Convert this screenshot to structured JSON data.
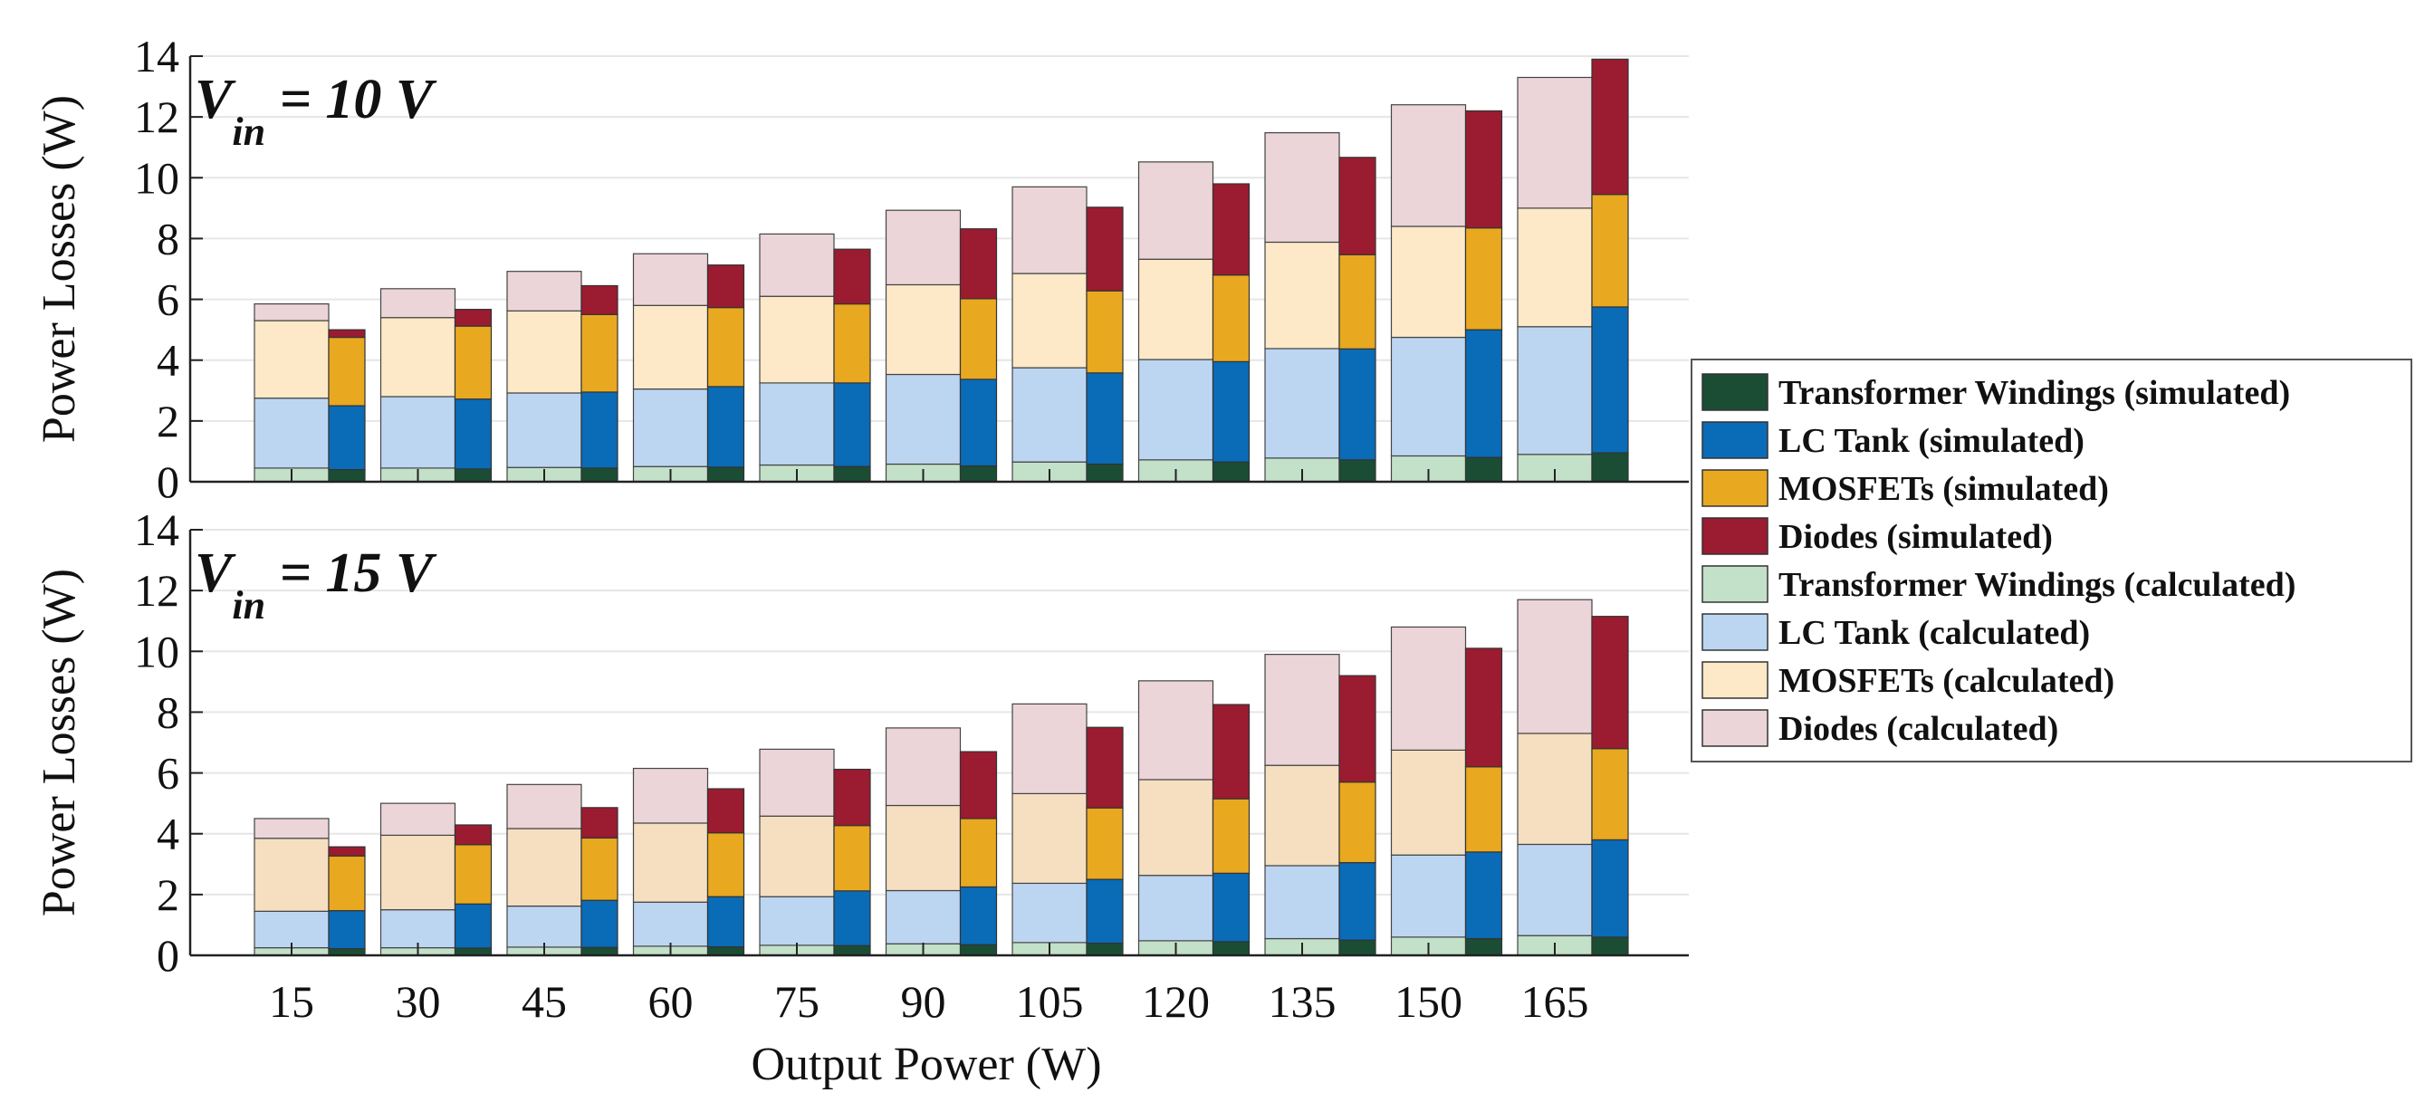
{
  "chart_data": {
    "type": "bar",
    "xlabel": "Output Power (W)",
    "categories": [
      "15",
      "30",
      "45",
      "60",
      "75",
      "90",
      "105",
      "120",
      "135",
      "150",
      "165"
    ],
    "components": [
      {
        "key": "tw",
        "sim_name": "Transformer Windings (simulated)",
        "calc_name": "Transformer Windings (calculated)",
        "sim_color": "#1b4d34",
        "calc_color": "#c3e0c8"
      },
      {
        "key": "lc",
        "sim_name": "LC Tank (simulated)",
        "calc_name": "LC Tank (calculated)",
        "sim_color": "#0a6bb7",
        "calc_color": "#bcd6f2"
      },
      {
        "key": "mos",
        "sim_name": "MOSFETs (simulated)",
        "calc_name": "MOSFETs (calculated)",
        "sim_color": "#e8a820",
        "calc_color": "#fde9c7"
      },
      {
        "key": "di",
        "sim_name": "Diodes (simulated)",
        "calc_name": "Diodes (calculated)",
        "sim_color": "#9b1b31",
        "calc_color": "#ebd5d8"
      }
    ],
    "legend": {
      "placement": "right",
      "entries": [
        {
          "label": "Transformer Windings (simulated)",
          "color": "#1b4d34"
        },
        {
          "label": "LC Tank (simulated)",
          "color": "#0a6bb7"
        },
        {
          "label": "MOSFETs (simulated)",
          "color": "#e8a820"
        },
        {
          "label": "Diodes (simulated)",
          "color": "#9b1b31"
        },
        {
          "label": "Transformer Windings (calculated)",
          "color": "#c3e0c8"
        },
        {
          "label": "LC Tank (calculated)",
          "color": "#bcd6f2"
        },
        {
          "label": "MOSFETs (calculated)",
          "color": "#fde9c7"
        },
        {
          "label": "Diodes (calculated)",
          "color": "#ebd5d8"
        }
      ]
    },
    "panels": [
      {
        "title_main": "V",
        "title_sub": "in",
        "title_rest": " = 10 V",
        "ylabel": "Power Losses (W)",
        "ylim": [
          0,
          14
        ],
        "yticks": [
          0,
          2,
          4,
          6,
          8,
          10,
          12,
          14
        ],
        "calc_color_overrides": {},
        "calculated": {
          "tw": [
            0.45,
            0.45,
            0.47,
            0.5,
            0.55,
            0.58,
            0.65,
            0.72,
            0.78,
            0.85,
            0.9
          ],
          "lc": [
            2.3,
            2.35,
            2.45,
            2.55,
            2.7,
            2.95,
            3.1,
            3.3,
            3.6,
            3.9,
            4.2
          ],
          "mos": [
            2.55,
            2.6,
            2.7,
            2.75,
            2.85,
            2.95,
            3.1,
            3.3,
            3.5,
            3.65,
            3.9
          ],
          "di": [
            0.55,
            0.95,
            1.3,
            1.7,
            2.05,
            2.45,
            2.85,
            3.2,
            3.6,
            4.0,
            4.3
          ]
        },
        "simulated": {
          "tw": [
            0.4,
            0.42,
            0.45,
            0.48,
            0.5,
            0.52,
            0.58,
            0.65,
            0.72,
            0.8,
            0.95
          ],
          "lc": [
            2.1,
            2.3,
            2.5,
            2.65,
            2.75,
            2.85,
            3.0,
            3.3,
            3.65,
            4.2,
            4.8
          ],
          "mos": [
            2.25,
            2.4,
            2.55,
            2.6,
            2.6,
            2.65,
            2.7,
            2.85,
            3.1,
            3.35,
            3.7
          ],
          "di": [
            0.25,
            0.55,
            0.95,
            1.4,
            1.8,
            2.3,
            2.75,
            3.0,
            3.2,
            3.85,
            4.45
          ]
        }
      },
      {
        "title_main": "V",
        "title_sub": "in",
        "title_rest": " = 15 V",
        "ylabel": "Power Losses (W)",
        "ylim": [
          0,
          14
        ],
        "yticks": [
          0,
          2,
          4,
          6,
          8,
          10,
          12,
          14
        ],
        "calc_color_overrides": {
          "mos": "#f5dfc0"
        },
        "calculated": {
          "tw": [
            0.25,
            0.25,
            0.27,
            0.3,
            0.33,
            0.38,
            0.42,
            0.48,
            0.55,
            0.6,
            0.65
          ],
          "lc": [
            1.2,
            1.25,
            1.35,
            1.45,
            1.6,
            1.75,
            1.95,
            2.15,
            2.4,
            2.7,
            3.0
          ],
          "mos": [
            2.4,
            2.45,
            2.55,
            2.6,
            2.65,
            2.8,
            2.95,
            3.15,
            3.3,
            3.45,
            3.65
          ],
          "di": [
            0.65,
            1.05,
            1.45,
            1.8,
            2.2,
            2.55,
            2.95,
            3.25,
            3.65,
            4.05,
            4.4
          ]
        },
        "simulated": {
          "tw": [
            0.22,
            0.24,
            0.26,
            0.28,
            0.32,
            0.35,
            0.4,
            0.45,
            0.5,
            0.55,
            0.6
          ],
          "lc": [
            1.25,
            1.45,
            1.55,
            1.65,
            1.8,
            1.9,
            2.1,
            2.25,
            2.55,
            2.85,
            3.2
          ],
          "mos": [
            1.8,
            1.95,
            2.05,
            2.1,
            2.15,
            2.25,
            2.35,
            2.45,
            2.65,
            2.8,
            3.0
          ],
          "di": [
            0.3,
            0.65,
            1.0,
            1.45,
            1.85,
            2.2,
            2.65,
            3.1,
            3.5,
            3.9,
            4.35
          ]
        }
      }
    ]
  }
}
